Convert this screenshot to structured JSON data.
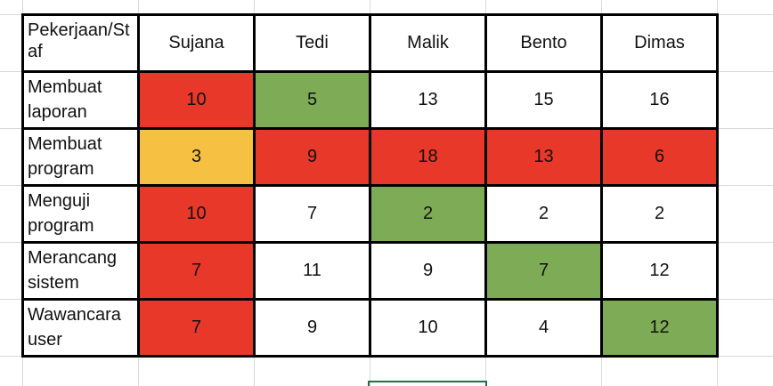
{
  "table": {
    "corner_header": "Pekerjaan/Staf",
    "columns": [
      "Sujana",
      "Tedi",
      "Malik",
      "Bento",
      "Dimas"
    ],
    "rows": [
      {
        "label": [
          "Membuat",
          "laporan"
        ],
        "values": [
          "10",
          "5",
          "13",
          "15",
          "16"
        ],
        "colors": [
          "red",
          "green",
          "white",
          "white",
          "white"
        ]
      },
      {
        "label": [
          "Membuat",
          "program"
        ],
        "values": [
          "3",
          "9",
          "18",
          "13",
          "6"
        ],
        "colors": [
          "yellow",
          "red",
          "red",
          "red",
          "red"
        ]
      },
      {
        "label": [
          "Menguji",
          "program"
        ],
        "values": [
          "10",
          "7",
          "2",
          "2",
          "2"
        ],
        "colors": [
          "red",
          "white",
          "green",
          "white",
          "white"
        ]
      },
      {
        "label": [
          "Merancang",
          "sistem"
        ],
        "values": [
          "7",
          "11",
          "9",
          "7",
          "12"
        ],
        "colors": [
          "red",
          "white",
          "white",
          "green",
          "white"
        ]
      },
      {
        "label": [
          "Wawancara",
          "user"
        ],
        "values": [
          "7",
          "9",
          "10",
          "4",
          "12"
        ],
        "colors": [
          "red",
          "white",
          "white",
          "white",
          "green"
        ]
      }
    ]
  },
  "palette": {
    "red": "#e8382a",
    "green": "#7eab55",
    "yellow": "#f6c142",
    "white": "#ffffff",
    "gridline": "#d9d9d9",
    "selection": "#1e7145"
  }
}
